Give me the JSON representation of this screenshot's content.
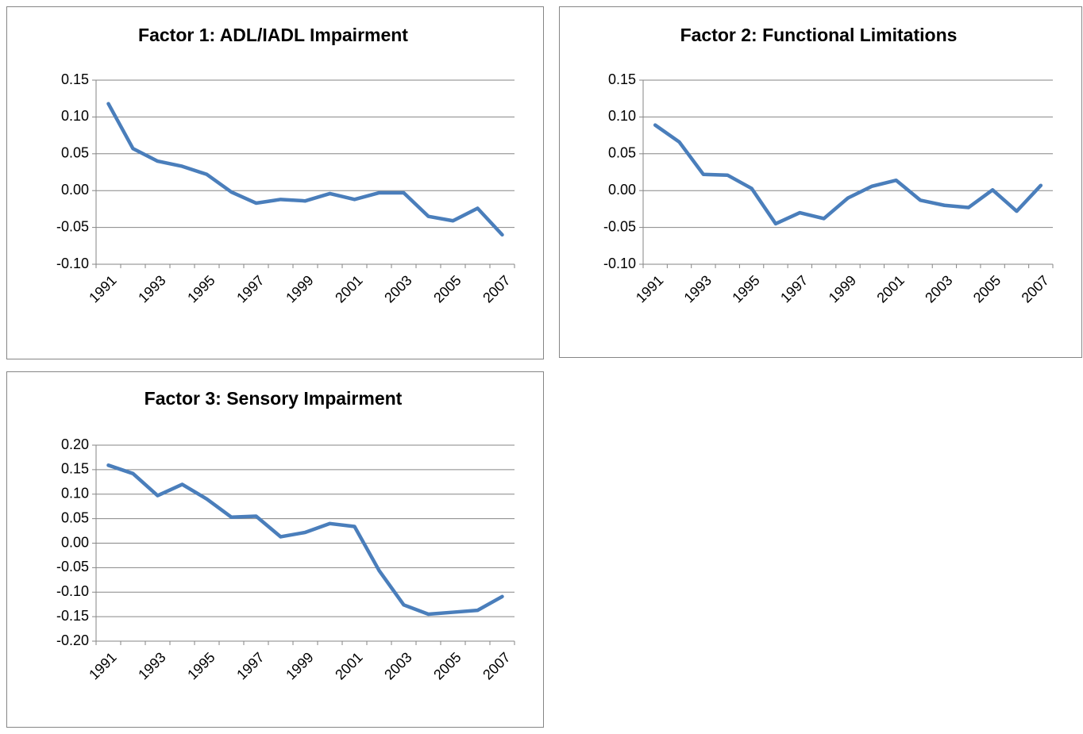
{
  "chart_data": [
    {
      "type": "line",
      "title": "Factor 1: ADL/IADL Impairment",
      "categories": [
        "1991",
        null,
        "1993",
        null,
        "1995",
        null,
        "1997",
        null,
        "1999",
        null,
        "2001",
        null,
        "2003",
        null,
        "2005",
        null,
        "2007"
      ],
      "values": [
        0.118,
        0.057,
        0.04,
        0.033,
        0.022,
        -0.002,
        -0.017,
        -0.012,
        -0.014,
        -0.004,
        -0.012,
        -0.003,
        -0.003,
        -0.035,
        -0.041,
        -0.024,
        -0.06
      ],
      "color": "#4a7ebb",
      "ylim": [
        -0.1,
        0.15
      ],
      "yticks": [
        0.15,
        {
          "value": 0.1,
          "label": "0.10"
        },
        0.05,
        {
          "value": 0,
          "label": "0.00"
        },
        -0.05,
        {
          "value": -0.1,
          "label": "-0.10"
        }
      ],
      "grid": true
    },
    {
      "type": "line",
      "title": "Factor 2: Functional Limitations",
      "categories": [
        "1991",
        null,
        "1993",
        null,
        "1995",
        null,
        "1997",
        null,
        "1999",
        null,
        "2001",
        null,
        "2003",
        null,
        "2005",
        null,
        "2007"
      ],
      "values": [
        0.089,
        0.066,
        0.022,
        0.021,
        0.003,
        -0.045,
        -0.03,
        -0.038,
        -0.01,
        0.006,
        0.014,
        -0.013,
        -0.02,
        -0.023,
        0.001,
        -0.028,
        0.007
      ],
      "color": "#4a7ebb",
      "ylim": [
        -0.1,
        0.15
      ],
      "yticks": [
        0.15,
        {
          "value": 0.1,
          "label": "0.10"
        },
        0.05,
        {
          "value": 0,
          "label": "0.00"
        },
        -0.05,
        {
          "value": -0.1,
          "label": "-0.10"
        }
      ],
      "grid": true
    },
    {
      "type": "line",
      "title": "Factor 3: Sensory Impairment",
      "categories": [
        "1991",
        null,
        "1993",
        null,
        "1995",
        null,
        "1997",
        null,
        "1999",
        null,
        "2001",
        null,
        "2003",
        null,
        "2005",
        null,
        "2007"
      ],
      "values": [
        0.159,
        0.142,
        0.097,
        0.12,
        0.09,
        0.053,
        0.055,
        0.013,
        0.022,
        0.04,
        0.034,
        -0.056,
        -0.126,
        -0.145,
        -0.141,
        -0.137,
        -0.109
      ],
      "color": "#4a7ebb",
      "ylim": [
        -0.2,
        0.2
      ],
      "yticks": [
        {
          "value": 0.2,
          "label": "0.20"
        },
        0.15,
        {
          "value": 0.1,
          "label": "0.10"
        },
        0.05,
        {
          "value": 0,
          "label": "0.00"
        },
        -0.05,
        {
          "value": -0.1,
          "label": "-0.10"
        },
        -0.15,
        {
          "value": -0.2,
          "label": "-0.20"
        }
      ],
      "grid": true
    }
  ]
}
